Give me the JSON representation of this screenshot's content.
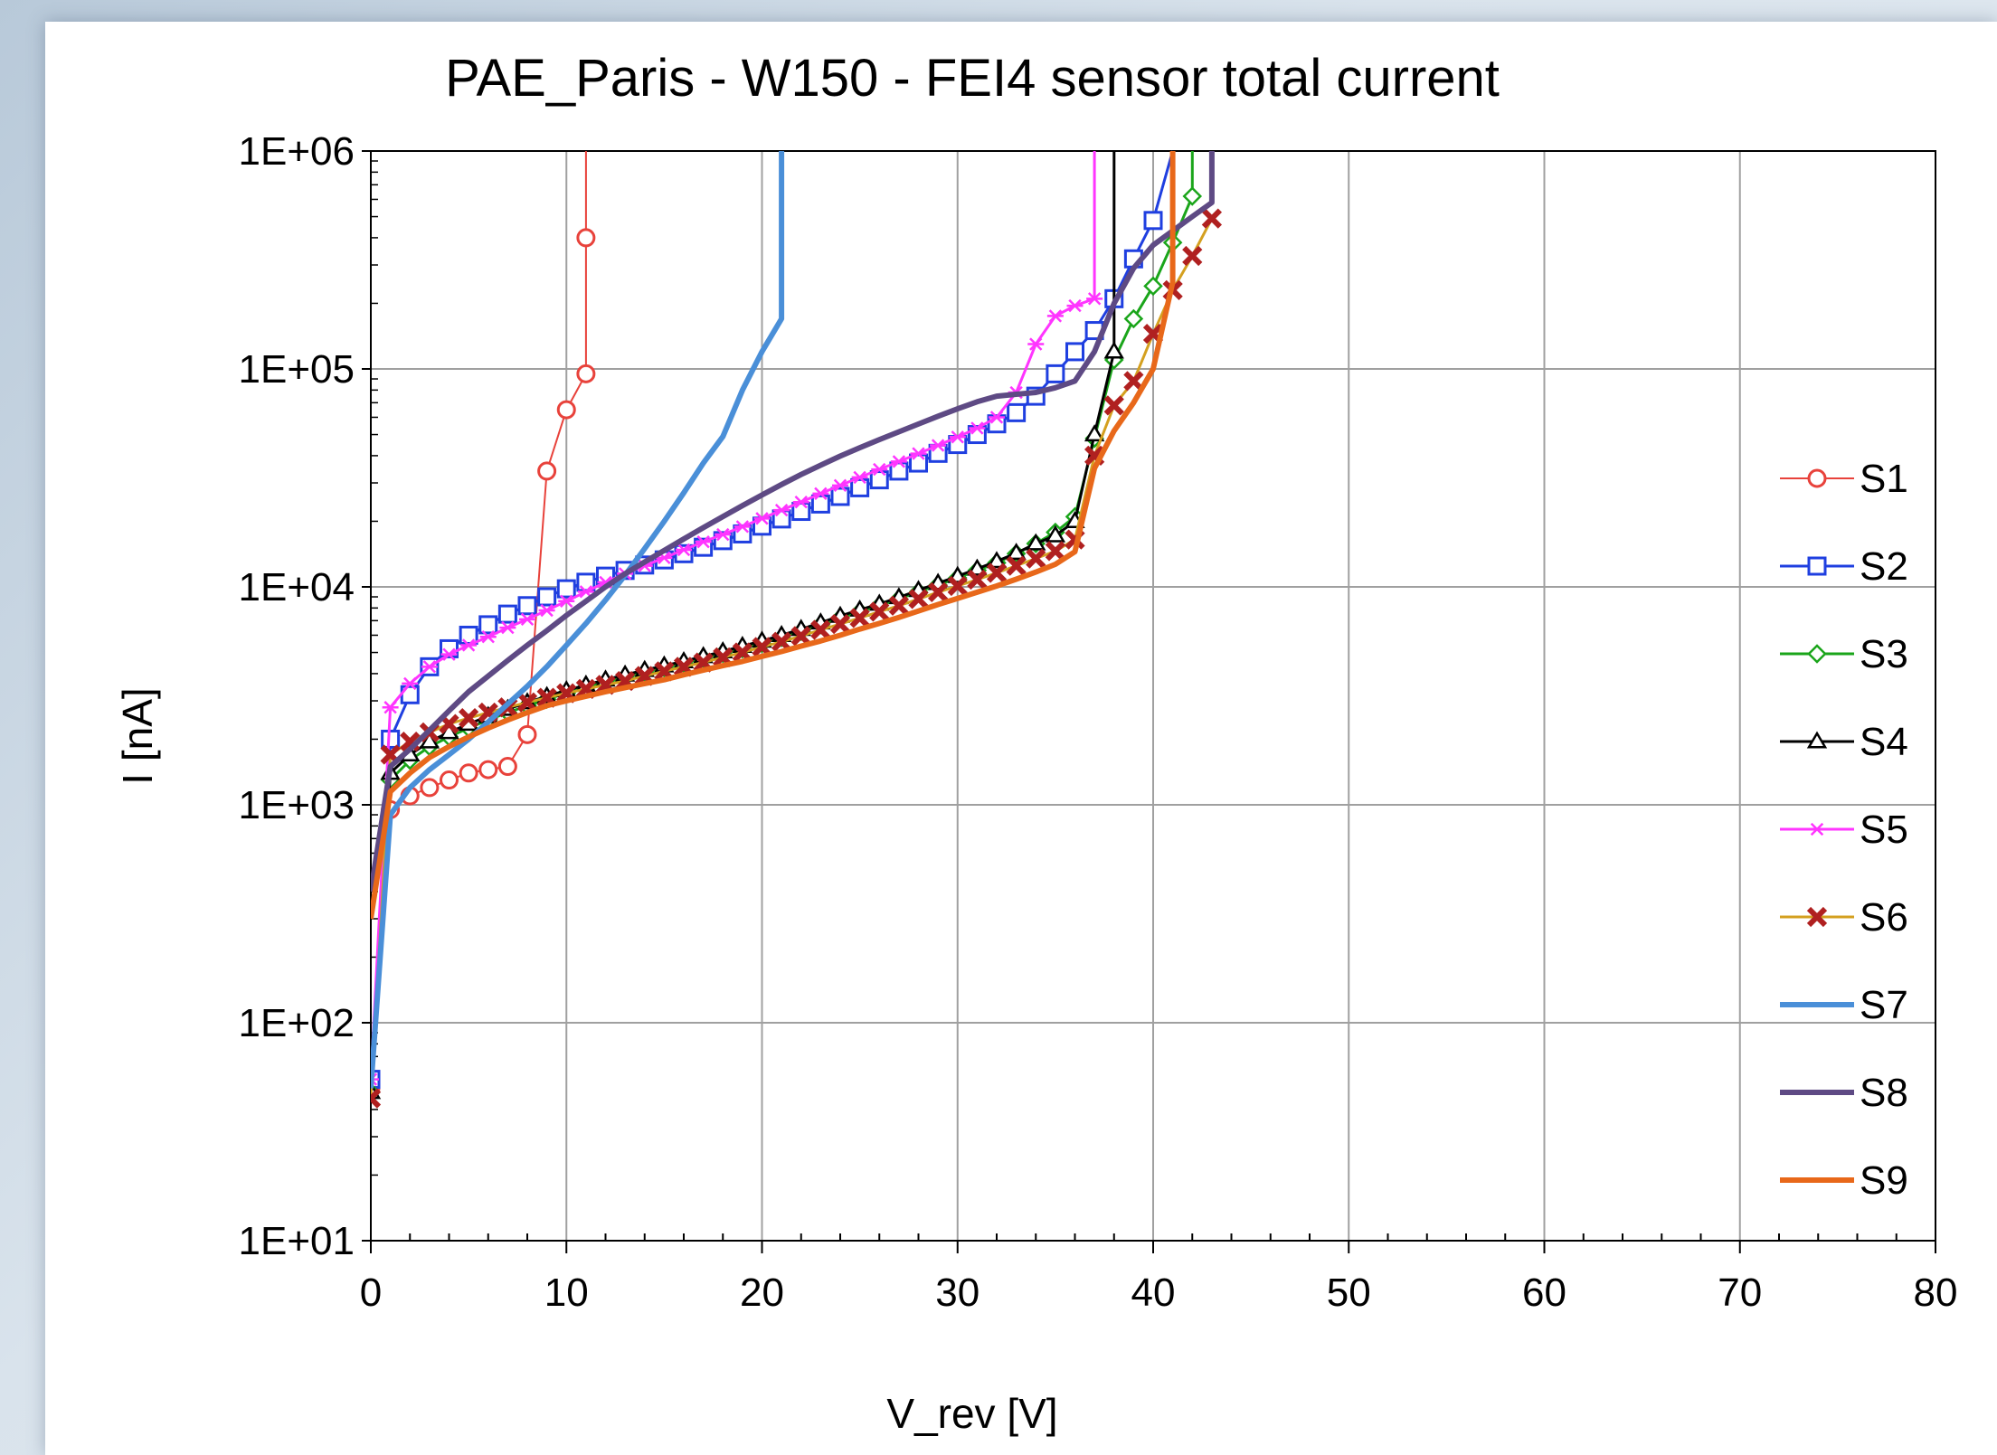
{
  "chart_data": {
    "type": "line",
    "title": "PAE_Paris - W150  -  FEI4 sensor total current",
    "xlabel": "V_rev [V]",
    "ylabel": "I [nA]",
    "xlim": [
      0,
      80
    ],
    "ylim": [
      10,
      1000000
    ],
    "yscale": "log",
    "x_ticks": [
      "0",
      "10",
      "20",
      "30",
      "40",
      "50",
      "60",
      "70",
      "80"
    ],
    "y_ticks": [
      "1E+01",
      "1E+02",
      "1E+03",
      "1E+04",
      "1E+05",
      "1E+06"
    ],
    "grid": true,
    "legend_position": "right",
    "series": [
      {
        "name": "S1",
        "color": "#e8423b",
        "marker": "circle",
        "width": 2,
        "x": [
          0,
          1,
          2,
          3,
          4,
          5,
          6,
          7,
          8,
          9,
          10,
          11,
          11,
          11
        ],
        "y": [
          50,
          950,
          1100,
          1200,
          1300,
          1400,
          1450,
          1500,
          2100,
          34000,
          65000,
          95000,
          400000,
          1000000
        ]
      },
      {
        "name": "S2",
        "color": "#1f3fe0",
        "marker": "square",
        "width": 3,
        "x": [
          0,
          1,
          2,
          3,
          4,
          5,
          6,
          7,
          8,
          9,
          10,
          11,
          12,
          13,
          14,
          15,
          16,
          17,
          18,
          19,
          20,
          21,
          22,
          23,
          24,
          25,
          26,
          27,
          28,
          29,
          30,
          31,
          32,
          33,
          34,
          35,
          36,
          37,
          38,
          39,
          40,
          41
        ],
        "y": [
          55,
          2000,
          3200,
          4300,
          5200,
          6000,
          6700,
          7500,
          8200,
          9000,
          9800,
          10500,
          11200,
          11900,
          12600,
          13300,
          14200,
          15200,
          16300,
          17500,
          19000,
          20500,
          22200,
          24000,
          26000,
          28500,
          31000,
          34000,
          37000,
          41000,
          45000,
          50000,
          56000,
          63000,
          75000,
          95000,
          120000,
          150000,
          210000,
          320000,
          480000,
          1000000
        ]
      },
      {
        "name": "S3",
        "color": "#1aa51a",
        "marker": "diamond",
        "width": 3,
        "x": [
          0,
          1,
          2,
          3,
          4,
          5,
          6,
          7,
          8,
          9,
          10,
          11,
          12,
          13,
          14,
          15,
          16,
          17,
          18,
          19,
          20,
          21,
          22,
          23,
          24,
          25,
          26,
          27,
          28,
          29,
          30,
          31,
          32,
          33,
          34,
          35,
          36,
          37,
          38,
          39,
          40,
          41,
          42,
          42
        ],
        "y": [
          48,
          1300,
          1600,
          1850,
          2050,
          2250,
          2450,
          2650,
          2850,
          3050,
          3250,
          3450,
          3650,
          3850,
          4050,
          4250,
          4450,
          4700,
          4950,
          5200,
          5500,
          5850,
          6250,
          6700,
          7200,
          7700,
          8200,
          8800,
          9500,
          10200,
          11000,
          11900,
          12900,
          14200,
          15800,
          17800,
          21000,
          48000,
          110000,
          170000,
          240000,
          380000,
          620000,
          1000000
        ]
      },
      {
        "name": "S4",
        "color": "#000000",
        "marker": "triangle",
        "width": 3,
        "x": [
          0,
          1,
          2,
          3,
          4,
          5,
          6,
          7,
          8,
          9,
          10,
          11,
          12,
          13,
          14,
          15,
          16,
          17,
          18,
          19,
          20,
          21,
          22,
          23,
          24,
          25,
          26,
          27,
          28,
          29,
          30,
          31,
          32,
          33,
          34,
          35,
          36,
          37,
          38,
          38
        ],
        "y": [
          48,
          1400,
          1700,
          1950,
          2150,
          2350,
          2550,
          2750,
          2950,
          3150,
          3350,
          3550,
          3750,
          3950,
          4150,
          4350,
          4550,
          4800,
          5050,
          5350,
          5650,
          6000,
          6400,
          6850,
          7350,
          7850,
          8350,
          8950,
          9650,
          10400,
          11200,
          12100,
          13100,
          14300,
          15800,
          17200,
          20000,
          50000,
          120000,
          1000000
        ]
      },
      {
        "name": "S5",
        "color": "#ff35ff",
        "marker": "star",
        "width": 3,
        "x": [
          0,
          1,
          2,
          3,
          4,
          5,
          6,
          7,
          8,
          9,
          10,
          11,
          12,
          13,
          14,
          15,
          16,
          17,
          18,
          19,
          20,
          21,
          22,
          23,
          24,
          25,
          26,
          27,
          28,
          29,
          30,
          31,
          32,
          33,
          34,
          35,
          36,
          37,
          37
        ],
        "y": [
          55,
          2800,
          3600,
          4300,
          4900,
          5400,
          5900,
          6500,
          7100,
          7800,
          8600,
          9500,
          10500,
          11500,
          12500,
          13600,
          14800,
          16100,
          17400,
          18900,
          20600,
          22500,
          24500,
          26800,
          29200,
          31800,
          34600,
          37600,
          40900,
          44600,
          48700,
          53500,
          60000,
          78000,
          130000,
          175000,
          195000,
          210000,
          1000000
        ]
      },
      {
        "name": "S6",
        "color": "#d4a020",
        "marker": "x",
        "marker_color": "#b02020",
        "width": 3,
        "x": [
          0,
          1,
          2,
          3,
          4,
          5,
          6,
          7,
          8,
          9,
          10,
          11,
          12,
          13,
          14,
          15,
          16,
          17,
          18,
          19,
          20,
          21,
          22,
          23,
          24,
          25,
          26,
          27,
          28,
          29,
          30,
          31,
          32,
          33,
          34,
          35,
          36,
          37,
          38,
          39,
          40,
          41,
          42,
          43
        ],
        "y": [
          45,
          1700,
          1950,
          2150,
          2350,
          2500,
          2650,
          2800,
          2950,
          3100,
          3250,
          3400,
          3550,
          3700,
          3900,
          4100,
          4300,
          4500,
          4750,
          5000,
          5300,
          5600,
          5950,
          6350,
          6750,
          7200,
          7700,
          8200,
          8800,
          9450,
          10100,
          10800,
          11600,
          12500,
          13500,
          14600,
          16500,
          40000,
          68000,
          88000,
          145000,
          230000,
          330000,
          490000
        ]
      },
      {
        "name": "S7",
        "color": "#4a8fd8",
        "marker": "none",
        "width": 6,
        "x": [
          0,
          1,
          2,
          3,
          4,
          5,
          6,
          7,
          8,
          9,
          10,
          11,
          12,
          13,
          14,
          15,
          16,
          17,
          18,
          19,
          20,
          21,
          21,
          21
        ],
        "y": [
          50,
          900,
          1200,
          1450,
          1700,
          2000,
          2400,
          2900,
          3500,
          4300,
          5400,
          6800,
          8700,
          11300,
          15000,
          20000,
          27000,
          37000,
          49000,
          80000,
          120000,
          170000,
          500000,
          1000000
        ]
      },
      {
        "name": "S8",
        "color": "#5e4a84",
        "marker": "none",
        "width": 6,
        "x": [
          0,
          1,
          2,
          3,
          4,
          5,
          6,
          7,
          8,
          9,
          10,
          11,
          12,
          13,
          14,
          15,
          16,
          17,
          18,
          19,
          20,
          21,
          22,
          23,
          24,
          25,
          26,
          27,
          28,
          29,
          30,
          31,
          32,
          33,
          34,
          35,
          36,
          37,
          38,
          39,
          40,
          41,
          42,
          43,
          43
        ],
        "y": [
          400,
          1500,
          1800,
          2200,
          2700,
          3300,
          3900,
          4600,
          5400,
          6300,
          7400,
          8600,
          10000,
          11500,
          13000,
          14700,
          16600,
          18700,
          21000,
          23600,
          26400,
          29500,
          32800,
          36200,
          39800,
          43500,
          47400,
          51500,
          55900,
          60700,
          65600,
          70700,
          75000,
          76500,
          78000,
          82000,
          88000,
          120000,
          200000,
          290000,
          370000,
          430000,
          500000,
          580000,
          1000000
        ]
      },
      {
        "name": "S9",
        "color": "#e8681a",
        "marker": "none",
        "width": 6,
        "x": [
          0,
          1,
          2,
          3,
          4,
          5,
          6,
          7,
          8,
          9,
          10,
          11,
          12,
          13,
          14,
          15,
          16,
          17,
          18,
          19,
          20,
          21,
          22,
          23,
          24,
          25,
          26,
          27,
          28,
          29,
          30,
          31,
          32,
          33,
          34,
          35,
          36,
          37,
          38,
          39,
          40,
          41,
          41
        ],
        "y": [
          300,
          1150,
          1400,
          1650,
          1850,
          2050,
          2250,
          2450,
          2650,
          2850,
          3000,
          3150,
          3300,
          3450,
          3600,
          3750,
          3950,
          4150,
          4350,
          4550,
          4800,
          5050,
          5350,
          5650,
          6000,
          6400,
          6800,
          7250,
          7750,
          8300,
          8850,
          9450,
          10100,
          10850,
          11700,
          12700,
          14500,
          35000,
          52000,
          70000,
          100000,
          250000,
          1000000
        ]
      }
    ]
  }
}
